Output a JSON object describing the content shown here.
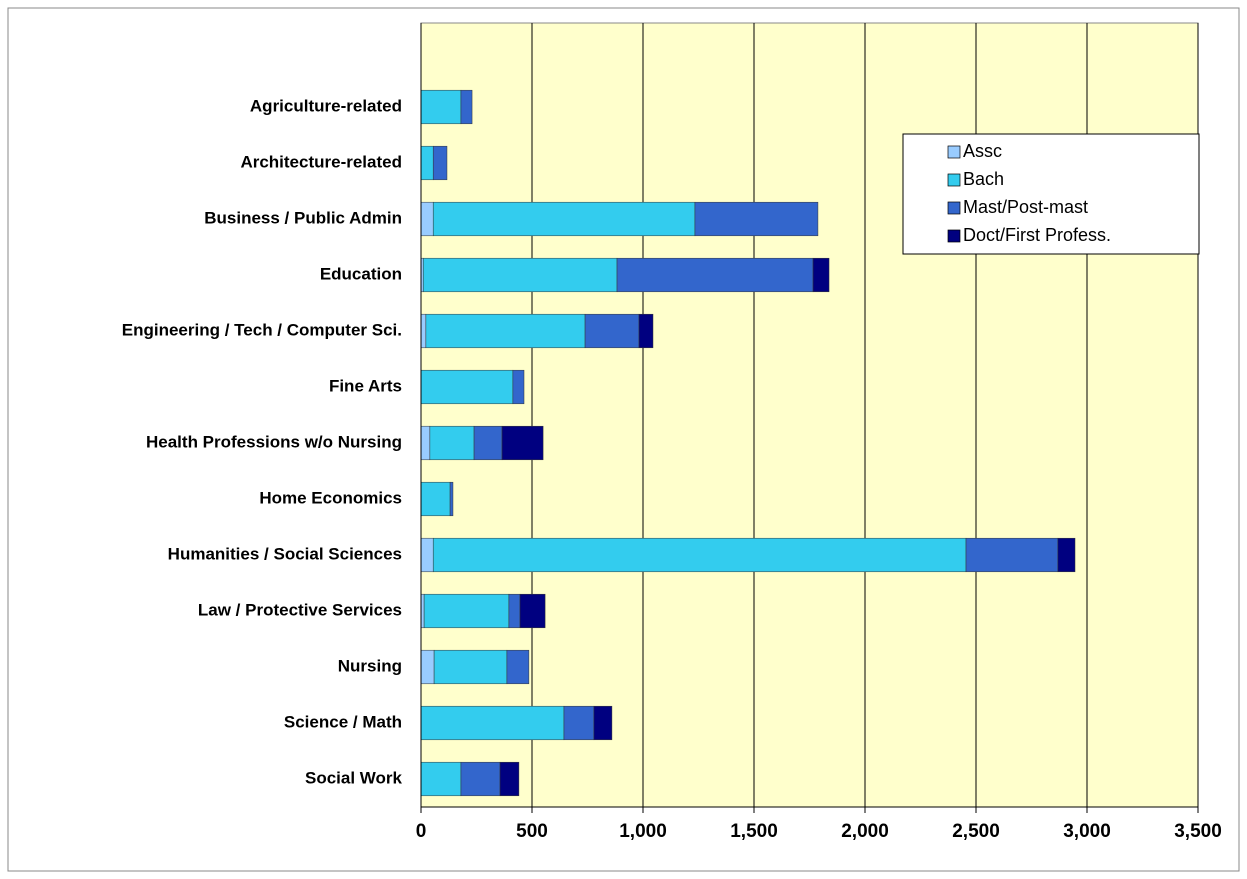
{
  "chart_data": {
    "type": "stacked-barh",
    "categories": [
      null,
      "Agriculture-related",
      "Architecture-related",
      "Business / Public Admin",
      "Education",
      "Engineering / Tech / Computer Sci.",
      "Fine Arts",
      "Health Professions w/o Nursing",
      "Home Economics",
      "Humanities / Social Sciences",
      "Law / Protective Services",
      "Nursing",
      "Science / Math",
      "Social Work"
    ],
    "series": [
      {
        "name": "Assc",
        "color": "#99ccff",
        "values": [
          null,
          0,
          0,
          55,
          10,
          22,
          0,
          40,
          0,
          55,
          14,
          59,
          0,
          0
        ]
      },
      {
        "name": "Bach",
        "color": "#33ccee",
        "values": [
          null,
          180,
          55,
          1179,
          873,
          717,
          414,
          199,
          131,
          2400,
          382,
          328,
          644,
          180
        ]
      },
      {
        "name": "Mast/Post-mast",
        "color": "#3366cc",
        "values": [
          null,
          50,
          62,
          554,
          883,
          243,
          50,
          126,
          13,
          414,
          50,
          99,
          135,
          176
        ]
      },
      {
        "name": "Doct/First Profess.",
        "color": "#000080",
        "values": [
          null,
          0,
          0,
          0,
          72,
          63,
          0,
          185,
          0,
          77,
          113,
          0,
          81,
          85
        ]
      }
    ],
    "xlim": [
      0,
      3500
    ],
    "xticks": [
      0,
      500,
      {
        "value": 1000,
        "label": "1,000"
      },
      {
        "value": 1500,
        "label": "1,500"
      },
      {
        "value": 2000,
        "label": "2,000"
      },
      {
        "value": 2500,
        "label": "2,500"
      },
      {
        "value": 3000,
        "label": "3,000"
      },
      {
        "value": 3500,
        "label": "3,500"
      }
    ],
    "grid": true,
    "legend": "upper right"
  }
}
